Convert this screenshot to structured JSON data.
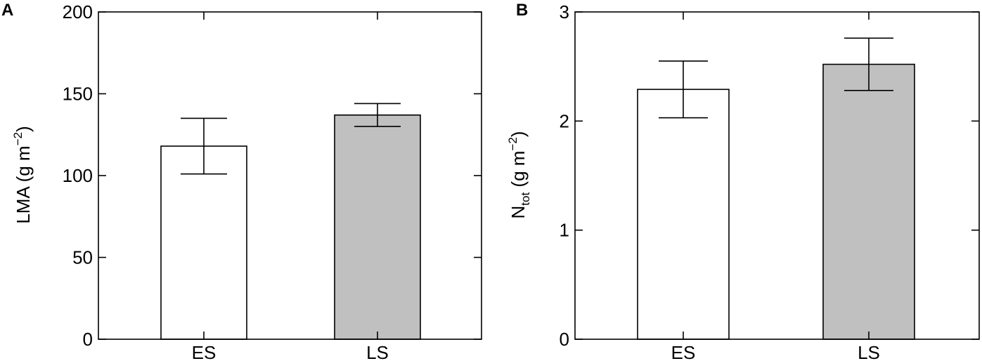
{
  "chart_data": [
    {
      "panel_label": "A",
      "type": "bar",
      "categories": [
        "ES",
        "LS"
      ],
      "values": [
        118,
        137
      ],
      "errors": [
        17,
        7
      ],
      "bar_colors": [
        "#ffffff",
        "#c0c0c0"
      ],
      "ylabel_main": "LMA (g m",
      "ylabel_sup": "−2",
      "ylabel_end": ")",
      "ylim": [
        0,
        200
      ],
      "yticks": [
        0,
        50,
        100,
        150,
        200
      ],
      "ytick_labels": [
        "0",
        "50",
        "100",
        "150",
        "200"
      ],
      "grid": false
    },
    {
      "panel_label": "B",
      "type": "bar",
      "categories": [
        "ES",
        "LS"
      ],
      "values": [
        2.29,
        2.52
      ],
      "errors": [
        0.26,
        0.24
      ],
      "bar_colors": [
        "#ffffff",
        "#c0c0c0"
      ],
      "ylabel_main": "N",
      "ylabel_sub": "tot",
      "ylabel_mid": " (g m",
      "ylabel_sup": "−2",
      "ylabel_end": ")",
      "ylim": [
        0,
        3
      ],
      "yticks": [
        0,
        1,
        2,
        3
      ],
      "ytick_labels": [
        "0",
        "1",
        "2",
        "3"
      ],
      "grid": false
    }
  ]
}
